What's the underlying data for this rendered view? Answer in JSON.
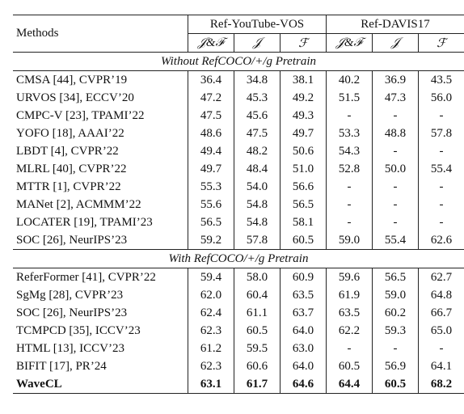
{
  "header": {
    "methods": "Methods",
    "groups": [
      "Ref-YouTube-VOS",
      "Ref-DAVIS17"
    ],
    "metrics": [
      "𝒥&ℱ",
      "𝒥",
      "ℱ",
      "𝒥&ℱ",
      "𝒥",
      "ℱ"
    ]
  },
  "sections": [
    {
      "title": "Without RefCOCO/+/g Pretrain",
      "rows": [
        {
          "method": "CMSA [44], CVPR’19",
          "values": [
            "36.4",
            "34.8",
            "38.1",
            "40.2",
            "36.9",
            "43.5"
          ]
        },
        {
          "method": "URVOS [34], ECCV’20",
          "values": [
            "47.2",
            "45.3",
            "49.2",
            "51.5",
            "47.3",
            "56.0"
          ]
        },
        {
          "method": "CMPC-V [23], TPAMI’22",
          "values": [
            "47.5",
            "45.6",
            "49.3",
            "-",
            "-",
            "-"
          ]
        },
        {
          "method": "YOFO [18], AAAI’22",
          "values": [
            "48.6",
            "47.5",
            "49.7",
            "53.3",
            "48.8",
            "57.8"
          ]
        },
        {
          "method": "LBDT [4], CVPR’22",
          "values": [
            "49.4",
            "48.2",
            "50.6",
            "54.3",
            "-",
            "-"
          ]
        },
        {
          "method": "MLRL [40], CVPR’22",
          "values": [
            "49.7",
            "48.4",
            "51.0",
            "52.8",
            "50.0",
            "55.4"
          ]
        },
        {
          "method": "MTTR [1], CVPR’22",
          "values": [
            "55.3",
            "54.0",
            "56.6",
            "-",
            "-",
            "-"
          ]
        },
        {
          "method": "MANet [2], ACMMM’22",
          "values": [
            "55.6",
            "54.8",
            "56.5",
            "-",
            "-",
            "-"
          ]
        },
        {
          "method": "LOCATER [19], TPAMI’23",
          "values": [
            "56.5",
            "54.8",
            "58.1",
            "-",
            "-",
            "-"
          ]
        },
        {
          "method": "SOC [26], NeurIPS’23",
          "values": [
            "59.2",
            "57.8",
            "60.5",
            "59.0",
            "55.4",
            "62.6"
          ]
        }
      ]
    },
    {
      "title": "With RefCOCO/+/g Pretrain",
      "rows": [
        {
          "method": "ReferFormer [41], CVPR’22",
          "values": [
            "59.4",
            "58.0",
            "60.9",
            "59.6",
            "56.5",
            "62.7"
          ]
        },
        {
          "method": "SgMg [28], CVPR’23",
          "values": [
            "62.0",
            "60.4",
            "63.5",
            "61.9",
            "59.0",
            "64.8"
          ]
        },
        {
          "method": "SOC [26], NeurIPS’23",
          "values": [
            "62.4",
            "61.1",
            "63.7",
            "63.5",
            "60.2",
            "66.7"
          ]
        },
        {
          "method": "TCMPCD [35], ICCV’23",
          "values": [
            "62.3",
            "60.5",
            "64.0",
            "62.2",
            "59.3",
            "65.0"
          ]
        },
        {
          "method": "HTML [13], ICCV’23",
          "values": [
            "61.2",
            "59.5",
            "63.0",
            "-",
            "-",
            "-"
          ]
        },
        {
          "method": "BIFIT [17], PR’24",
          "values": [
            "62.3",
            "60.6",
            "64.0",
            "60.5",
            "56.9",
            "64.1"
          ]
        },
        {
          "method": "WaveCL",
          "values": [
            "63.1",
            "61.7",
            "64.6",
            "64.4",
            "60.5",
            "68.2"
          ],
          "bold": true
        }
      ]
    }
  ]
}
